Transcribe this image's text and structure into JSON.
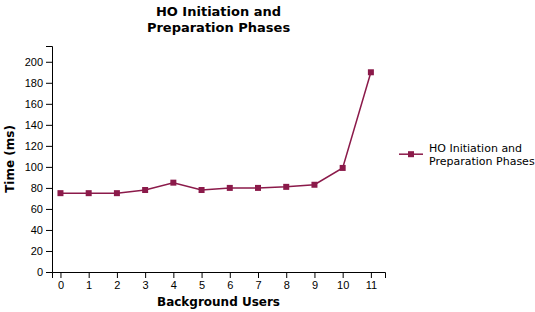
{
  "chart_data": {
    "type": "line",
    "title": "HO Initiation and\nPreparation Phases",
    "xlabel": "Background Users",
    "ylabel": "Time (ms)",
    "x": [
      0,
      1,
      2,
      3,
      4,
      5,
      6,
      7,
      8,
      9,
      10,
      11
    ],
    "series": [
      {
        "name": "HO Initiation and\nPreparation Phases",
        "color": "#8B1A4A",
        "marker": "square",
        "values": [
          75,
          75,
          75,
          78,
          85,
          78,
          80,
          80,
          81,
          83,
          99,
          190
        ]
      }
    ],
    "xlim": [
      -0.3,
      11.5
    ],
    "xticks": [
      0,
      1,
      2,
      3,
      4,
      5,
      6,
      7,
      8,
      9,
      10,
      11
    ],
    "ylim": [
      0,
      215
    ],
    "yticks": [
      0,
      20,
      40,
      60,
      80,
      100,
      120,
      140,
      160,
      180,
      200
    ],
    "grid": false,
    "legend": "right"
  }
}
